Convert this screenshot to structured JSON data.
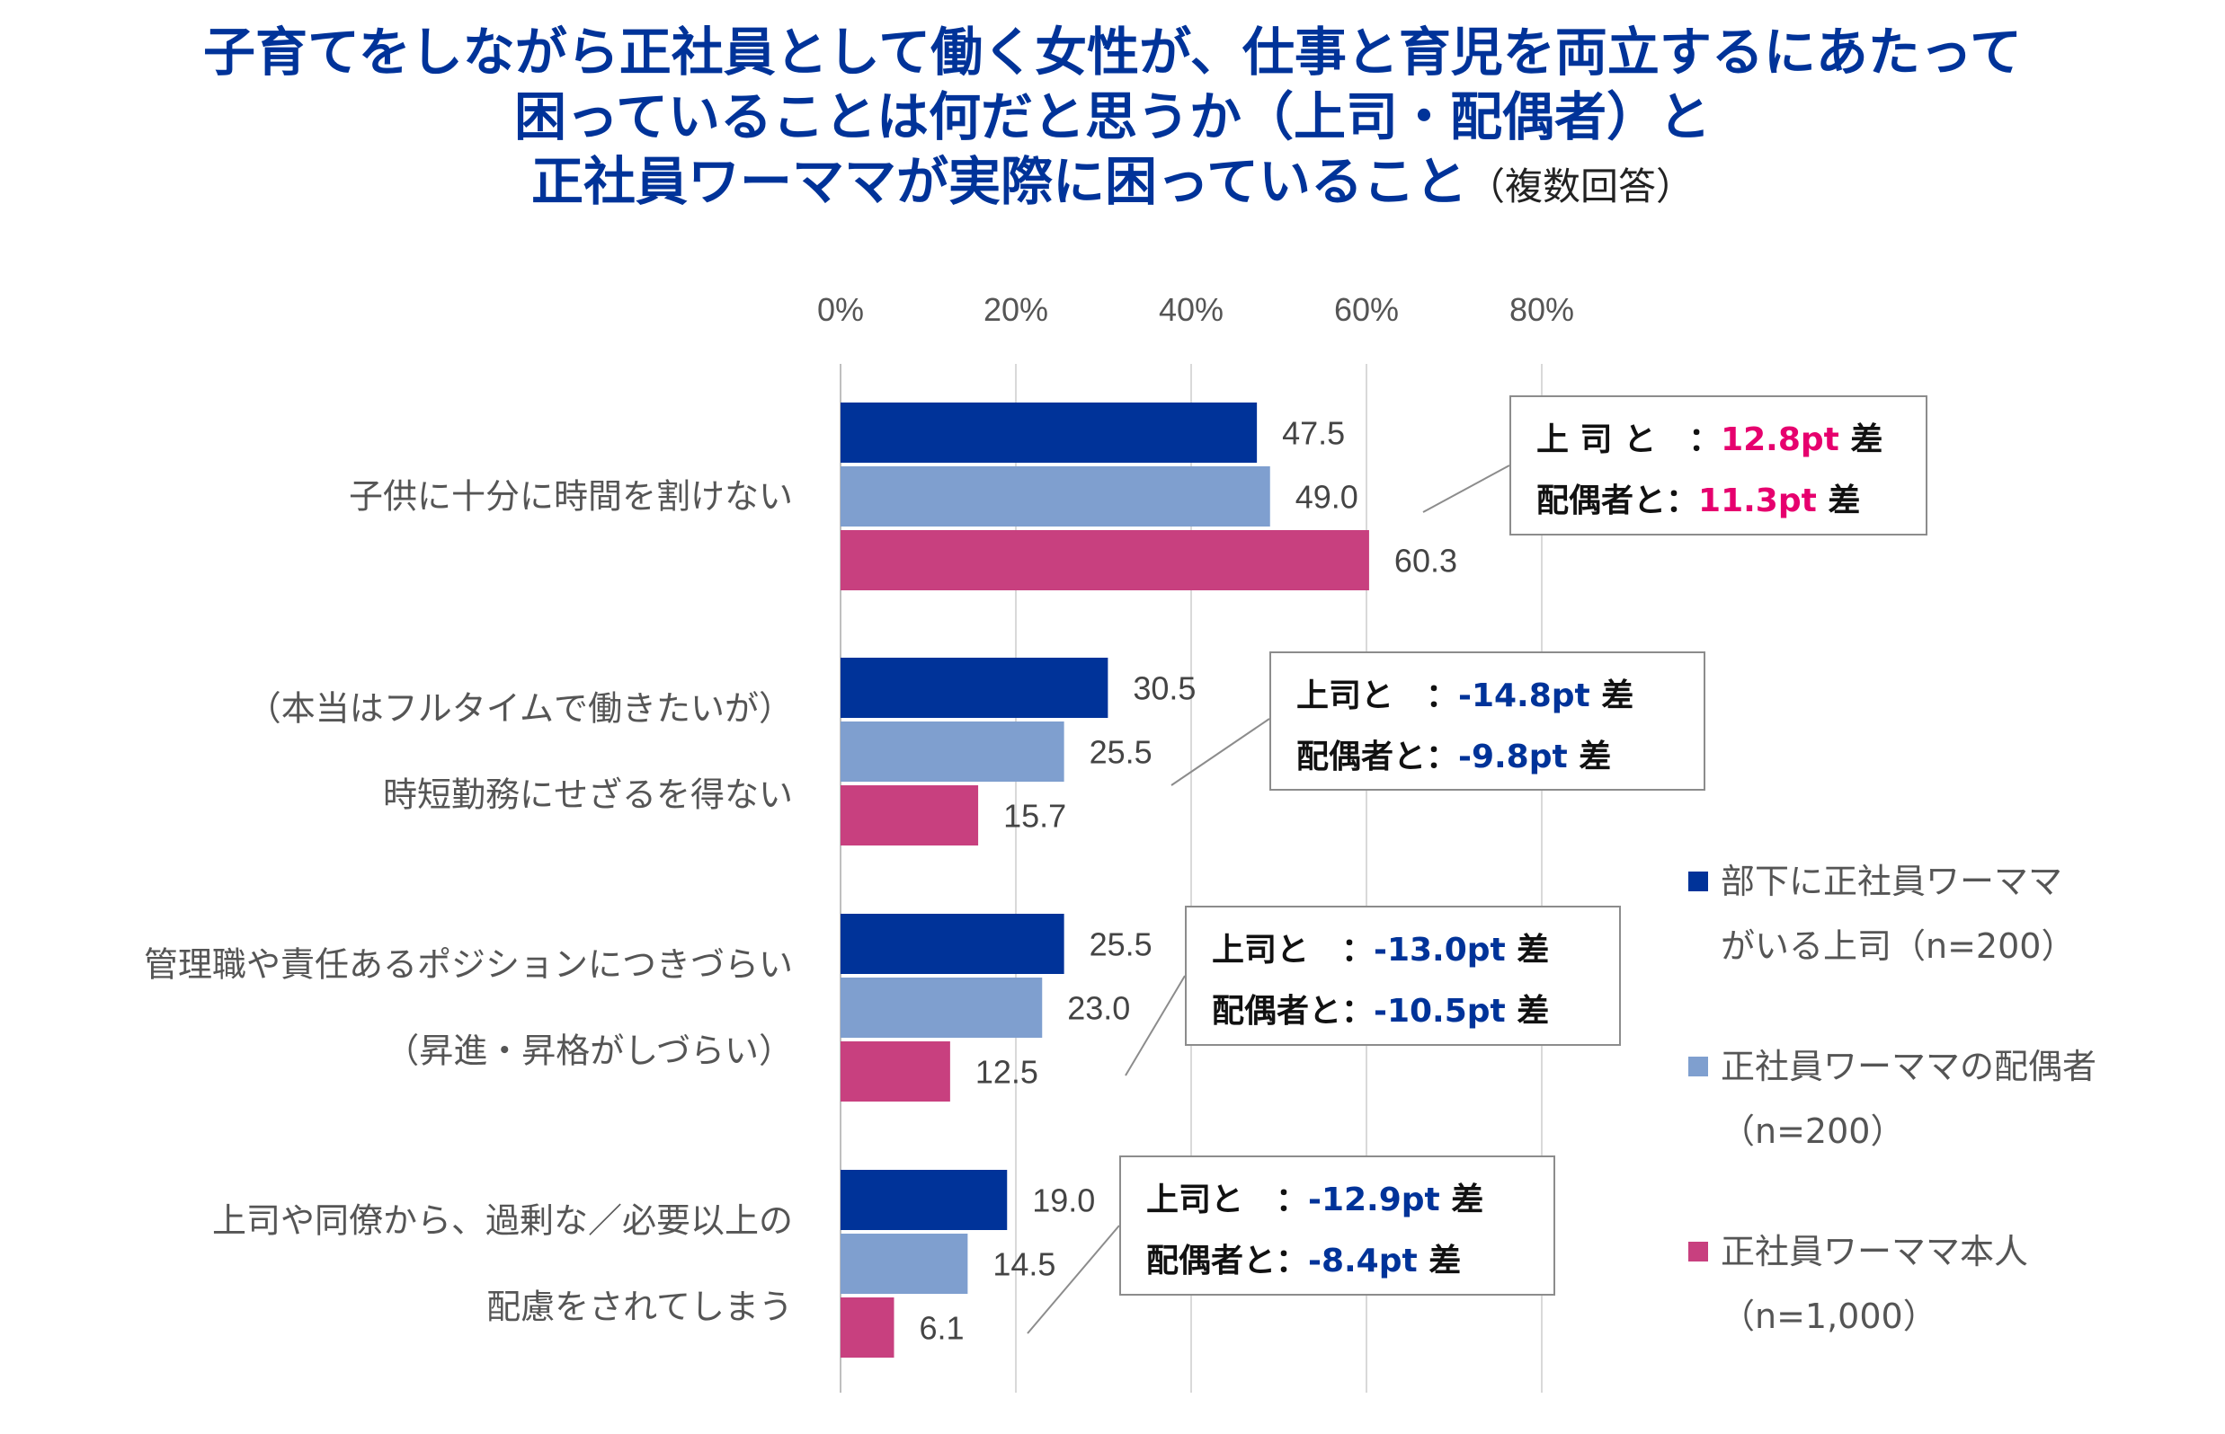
{
  "title": {
    "line1": "子育てをしながら正社員として働く女性が、仕事と育児を両立するにあたって",
    "line2": "困っていることは何だと思うか（上司・配偶者）と",
    "line3": "正社員ワーママが実際に困っていること",
    "note": "（複数回答）"
  },
  "colors": {
    "boss": "#003399",
    "spouse": "#7f9fcf",
    "self": "#c8407f",
    "positive_diff": "#e6006e",
    "negative_diff": "#003399"
  },
  "chart_data": {
    "type": "bar",
    "orientation": "horizontal",
    "xlim": [
      0,
      80
    ],
    "x_ticks": [
      "0%",
      "20%",
      "40%",
      "60%",
      "80%"
    ],
    "grid": true,
    "legend_position": "right",
    "categories": [
      [
        "子供に十分に時間を割けない"
      ],
      [
        "（本当はフルタイムで働きたいが）",
        "時短勤務にせざるを得ない"
      ],
      [
        "管理職や責任あるポジションにつきづらい",
        "（昇進・昇格がしづらい）"
      ],
      [
        "上司や同僚から、過剰な／必要以上の",
        "配慮をされてしまう"
      ]
    ],
    "series": [
      {
        "name": "部下に正社員ワーママがいる上司（n=200）",
        "legend_lines": [
          "部下に正社員ワーママ",
          "がいる上司（n=200）"
        ],
        "values": [
          47.5,
          30.5,
          25.5,
          19.0
        ],
        "labels": [
          "47.5",
          "30.5",
          "25.5",
          "19.0"
        ]
      },
      {
        "name": "正社員ワーママの配偶者（n=200）",
        "legend_lines": [
          "正社員ワーママの配偶者",
          "（n=200）"
        ],
        "values": [
          49.0,
          25.5,
          23.0,
          14.5
        ],
        "labels": [
          "49.0",
          "25.5",
          "23.0",
          "14.5"
        ]
      },
      {
        "name": "正社員ワーママ本人（n=1,000）",
        "legend_lines": [
          "正社員ワーママ本人",
          "（n=1,000）"
        ],
        "values": [
          60.3,
          15.7,
          12.5,
          6.1
        ],
        "labels": [
          "60.3",
          "15.7",
          "12.5",
          "6.1"
        ]
      }
    ],
    "annotations": [
      {
        "line1_label": "上 司 と　：",
        "line1_value": "12.8pt",
        "line2_label": "配偶者と：",
        "line2_value": "11.3pt",
        "unit": "差",
        "sign": "positive"
      },
      {
        "line1_label": "上司と　：",
        "line1_value": "-14.8pt",
        "line2_label": "配偶者と：",
        "line2_value": "-9.8pt",
        "unit": "差",
        "sign": "negative"
      },
      {
        "line1_label": "上司と　：",
        "line1_value": "-13.0pt",
        "line2_label": "配偶者と：",
        "line2_value": "-10.5pt",
        "unit": "差",
        "sign": "negative"
      },
      {
        "line1_label": "上司と　：",
        "line1_value": "-12.9pt",
        "line2_label": "配偶者と：",
        "line2_value": "-8.4pt",
        "unit": "差",
        "sign": "negative"
      }
    ]
  }
}
